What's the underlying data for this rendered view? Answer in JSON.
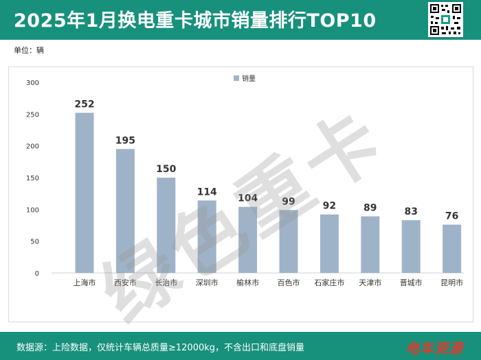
{
  "header": {
    "title": "2025年1月换电重卡城市销量排行TOP10"
  },
  "unit_label": "单位：辆",
  "watermark": "绿色重卡",
  "colors": {
    "header_bg": "#17907c",
    "bar": "#9fb3c8",
    "brand": "#e23b2a"
  },
  "chart_data": {
    "type": "bar",
    "title": "",
    "categories": [
      "上海市",
      "西安市",
      "长治市",
      "深圳市",
      "榆林市",
      "百色市",
      "石家庄市",
      "天津市",
      "晋城市",
      "昆明市"
    ],
    "series": [
      {
        "name": "销量",
        "values": [
          252,
          195,
          150,
          114,
          104,
          99,
          92,
          89,
          83,
          76
        ]
      }
    ],
    "ylim": [
      0,
      300
    ],
    "yticks": [
      0,
      50,
      100,
      150,
      200,
      250,
      300
    ],
    "xlabel": "",
    "ylabel": "",
    "legend_position": "top-center",
    "data_labels": true,
    "grid": false
  },
  "footer": {
    "note": "数据源：上险数据，仅统计车辆总质量≥12000kg，不含出口和底盘销量",
    "brand": "电车资源"
  }
}
